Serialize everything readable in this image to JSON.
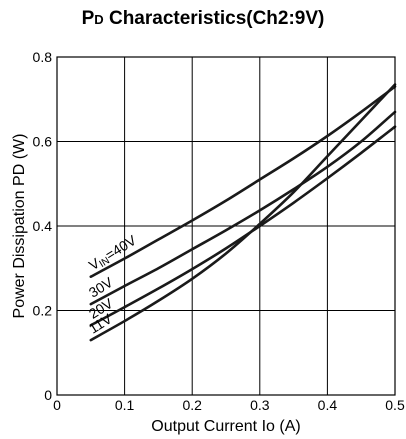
{
  "title": {
    "main_prefix": "P",
    "main_sub": "D",
    "main_rest": " Characteristics(Ch2:9V)"
  },
  "chart_data": {
    "type": "line",
    "title": "PD Characteristics(Ch2:9V)",
    "xlabel": "Output Current Io (A)",
    "ylabel": "Power Dissipation PD (W)",
    "xlim": [
      0,
      0.5
    ],
    "ylim": [
      0,
      0.8
    ],
    "x_ticks": [
      "0",
      "0.1",
      "0.2",
      "0.3",
      "0.4",
      "0.5"
    ],
    "y_ticks": [
      "0",
      "0.2",
      "0.4",
      "0.6",
      "0.8"
    ],
    "grid": true,
    "series": [
      {
        "name": "VIN=40V",
        "x": [
          0.05,
          0.1,
          0.15,
          0.2,
          0.25,
          0.3,
          0.35,
          0.4,
          0.45,
          0.5
        ],
        "y": [
          0.28,
          0.323,
          0.368,
          0.413,
          0.46,
          0.51,
          0.56,
          0.613,
          0.67,
          0.73
        ]
      },
      {
        "name": "30V",
        "x": [
          0.05,
          0.1,
          0.15,
          0.2,
          0.25,
          0.3,
          0.35,
          0.4,
          0.45,
          0.5
        ],
        "y": [
          0.215,
          0.258,
          0.3,
          0.345,
          0.39,
          0.437,
          0.487,
          0.54,
          0.6,
          0.67
        ]
      },
      {
        "name": "20V",
        "x": [
          0.05,
          0.1,
          0.15,
          0.2,
          0.25,
          0.3,
          0.35,
          0.4,
          0.45,
          0.5
        ],
        "y": [
          0.165,
          0.208,
          0.252,
          0.298,
          0.347,
          0.4,
          0.455,
          0.513,
          0.573,
          0.635
        ]
      },
      {
        "name": "11V",
        "x": [
          0.05,
          0.1,
          0.15,
          0.2,
          0.25,
          0.3,
          0.35,
          0.4,
          0.45,
          0.5
        ],
        "y": [
          0.13,
          0.175,
          0.223,
          0.275,
          0.335,
          0.405,
          0.48,
          0.565,
          0.65,
          0.735
        ]
      }
    ]
  }
}
